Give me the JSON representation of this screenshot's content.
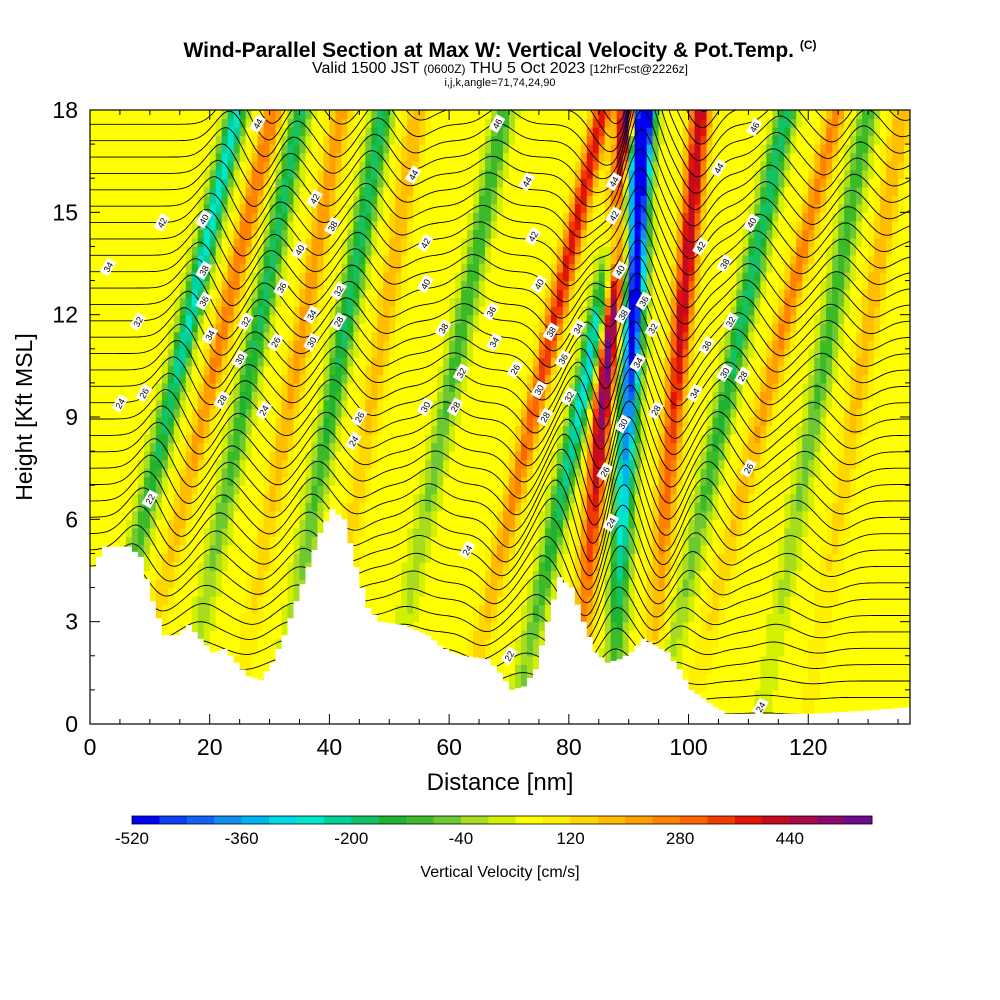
{
  "header": {
    "title": "Wind-Parallel Section at Max W: Vertical Velocity & Pot.Temp.",
    "title_mark": "(C)",
    "valid_prefix": "Valid 1500 JST",
    "valid_utc": "(0600Z)",
    "valid_date": "THU 5 Oct 2023",
    "forecast": "[12hrFcst@2226z]",
    "params": "i,j,k,angle=71,74,24,90"
  },
  "chart_data": {
    "type": "heatmap",
    "xlabel": "Distance [nm]",
    "ylabel": "Height [Kft MSL]",
    "xlim": [
      0,
      137
    ],
    "ylim": [
      0,
      18
    ],
    "x_ticks": [
      "0",
      "20",
      "40",
      "60",
      "80",
      "100",
      "120"
    ],
    "y_ticks": [
      "0",
      "3",
      "6",
      "9",
      "12",
      "15",
      "18"
    ],
    "fill_variable": "Vertical Velocity [cm/s]",
    "contour_variable": "Potential Temperature",
    "colorbar": {
      "label": "Vertical Velocity [cm/s]",
      "min": -520,
      "max": 520,
      "step": 40,
      "tick_labels": [
        "-520",
        "-360",
        "-200",
        "-40",
        "120",
        "280",
        "440"
      ],
      "colors": [
        "#0000f5",
        "#0c3ff5",
        "#1560f8",
        "#0f8ff0",
        "#00b4f0",
        "#00d8e6",
        "#00e6c8",
        "#00d29a",
        "#14c266",
        "#1eb432",
        "#3cba28",
        "#6ec832",
        "#a8dc1e",
        "#d2f000",
        "#ffff00",
        "#fff000",
        "#ffd700",
        "#ffbe00",
        "#ffa000",
        "#ff8200",
        "#ff6400",
        "#f03c00",
        "#e11405",
        "#c80a1e",
        "#aa0a46",
        "#8c0a6e",
        "#6e0a8c"
      ]
    },
    "terrain_kft": [
      [
        0,
        4.6
      ],
      [
        2,
        5.2
      ],
      [
        6,
        5.2
      ],
      [
        8,
        4.9
      ],
      [
        10,
        3.6
      ],
      [
        12,
        2.6
      ],
      [
        14,
        2.6
      ],
      [
        16,
        2.9
      ],
      [
        18,
        2.5
      ],
      [
        20,
        2.1
      ],
      [
        22,
        2.2
      ],
      [
        24,
        1.8
      ],
      [
        26,
        1.4
      ],
      [
        28,
        1.3
      ],
      [
        30,
        1.8
      ],
      [
        32,
        2.6
      ],
      [
        34,
        3.6
      ],
      [
        36,
        4.6
      ],
      [
        38,
        5.6
      ],
      [
        40,
        6.3
      ],
      [
        42,
        6.0
      ],
      [
        44,
        4.6
      ],
      [
        46,
        3.4
      ],
      [
        48,
        3.0
      ],
      [
        52,
        2.9
      ],
      [
        56,
        2.6
      ],
      [
        58,
        2.3
      ],
      [
        60,
        2.1
      ],
      [
        62,
        2.0
      ],
      [
        66,
        1.9
      ],
      [
        68,
        1.5
      ],
      [
        70,
        1.0
      ],
      [
        72,
        1.1
      ],
      [
        74,
        1.6
      ],
      [
        76,
        3.0
      ],
      [
        78,
        4.3
      ],
      [
        80,
        4.0
      ],
      [
        82,
        3.0
      ],
      [
        84,
        2.1
      ],
      [
        86,
        1.8
      ],
      [
        88,
        1.9
      ],
      [
        90,
        2.1
      ],
      [
        92,
        2.5
      ],
      [
        96,
        2.1
      ],
      [
        98,
        1.6
      ],
      [
        100,
        1.0
      ],
      [
        104,
        0.5
      ],
      [
        106,
        0.3
      ],
      [
        110,
        0.3
      ],
      [
        120,
        0.3
      ],
      [
        130,
        0.4
      ],
      [
        137,
        0.5
      ]
    ],
    "updrafts": [
      {
        "x": 15,
        "slope": 1.3,
        "amp": 220
      },
      {
        "x": 30,
        "slope": 1.0,
        "amp": 180
      },
      {
        "x": 44,
        "slope": 0.9,
        "amp": 140
      },
      {
        "x": 70,
        "slope": 1.3,
        "amp": 320
      },
      {
        "x": 84,
        "slope": 0.5,
        "amp": 560
      },
      {
        "x": 96,
        "slope": 0.5,
        "amp": 380
      },
      {
        "x": 108,
        "slope": 1.4,
        "amp": 200
      },
      {
        "x": 125,
        "slope": 0.9,
        "amp": 140
      }
    ],
    "downdrafts": [
      {
        "x": 9,
        "slope": 1.3,
        "amp": -320
      },
      {
        "x": 22,
        "slope": 1.1,
        "amp": -240
      },
      {
        "x": 37,
        "slope": 1.0,
        "amp": -250
      },
      {
        "x": 56,
        "slope": 1.1,
        "amp": -180
      },
      {
        "x": 78,
        "slope": 1.2,
        "amp": -420
      },
      {
        "x": 89,
        "slope": 0.3,
        "amp": -620
      },
      {
        "x": 102,
        "slope": 1.2,
        "amp": -260
      },
      {
        "x": 118,
        "slope": 1.0,
        "amp": -180
      }
    ],
    "contour_labels": [
      {
        "text": "44",
        "x": 28,
        "y": 17.6
      },
      {
        "text": "42",
        "x": 12,
        "y": 14.7
      },
      {
        "text": "40",
        "x": 19,
        "y": 14.8
      },
      {
        "text": "38",
        "x": 19,
        "y": 13.3
      },
      {
        "text": "36",
        "x": 19,
        "y": 12.4
      },
      {
        "text": "34",
        "x": 3,
        "y": 13.4
      },
      {
        "text": "32",
        "x": 8,
        "y": 11.8
      },
      {
        "text": "34",
        "x": 20,
        "y": 11.4
      },
      {
        "text": "32",
        "x": 26,
        "y": 11.8
      },
      {
        "text": "30",
        "x": 25,
        "y": 10.7
      },
      {
        "text": "26",
        "x": 9,
        "y": 9.7
      },
      {
        "text": "24",
        "x": 5,
        "y": 9.4
      },
      {
        "text": "28",
        "x": 22,
        "y": 9.5
      },
      {
        "text": "24",
        "x": 29,
        "y": 9.2
      },
      {
        "text": "22",
        "x": 10,
        "y": 6.6
      },
      {
        "text": "42",
        "x": 37.5,
        "y": 15.4
      },
      {
        "text": "40",
        "x": 35,
        "y": 13.9
      },
      {
        "text": "38",
        "x": 40.5,
        "y": 14.6
      },
      {
        "text": "36",
        "x": 32,
        "y": 12.8
      },
      {
        "text": "34",
        "x": 37,
        "y": 12.0
      },
      {
        "text": "32",
        "x": 41.5,
        "y": 12.7
      },
      {
        "text": "30",
        "x": 37,
        "y": 11.2
      },
      {
        "text": "28",
        "x": 41.5,
        "y": 11.8
      },
      {
        "text": "26",
        "x": 31,
        "y": 11.2
      },
      {
        "text": "26",
        "x": 45,
        "y": 9.0
      },
      {
        "text": "24",
        "x": 44,
        "y": 8.3
      },
      {
        "text": "44",
        "x": 54,
        "y": 16.1
      },
      {
        "text": "42",
        "x": 56,
        "y": 14.1
      },
      {
        "text": "40",
        "x": 56,
        "y": 12.9
      },
      {
        "text": "38",
        "x": 59,
        "y": 11.6
      },
      {
        "text": "32",
        "x": 62,
        "y": 10.3
      },
      {
        "text": "30",
        "x": 56,
        "y": 9.3
      },
      {
        "text": "28",
        "x": 61,
        "y": 9.3
      },
      {
        "text": "24",
        "x": 63,
        "y": 5.1
      },
      {
        "text": "46",
        "x": 68,
        "y": 17.6
      },
      {
        "text": "36",
        "x": 67,
        "y": 12.1
      },
      {
        "text": "34",
        "x": 67.5,
        "y": 11.2
      },
      {
        "text": "26",
        "x": 71,
        "y": 10.4
      },
      {
        "text": "44",
        "x": 73,
        "y": 15.9
      },
      {
        "text": "42",
        "x": 74,
        "y": 14.3
      },
      {
        "text": "40",
        "x": 75,
        "y": 12.9
      },
      {
        "text": "38",
        "x": 77,
        "y": 11.5
      },
      {
        "text": "36",
        "x": 79,
        "y": 10.7
      },
      {
        "text": "30",
        "x": 75,
        "y": 9.8
      },
      {
        "text": "28",
        "x": 76,
        "y": 9.0
      },
      {
        "text": "22",
        "x": 70,
        "y": 2.0
      },
      {
        "text": "34",
        "x": 81.5,
        "y": 11.6
      },
      {
        "text": "32",
        "x": 80,
        "y": 9.6
      },
      {
        "text": "44",
        "x": 87.5,
        "y": 15.9
      },
      {
        "text": "42",
        "x": 87.5,
        "y": 14.9
      },
      {
        "text": "40",
        "x": 88.5,
        "y": 13.3
      },
      {
        "text": "38",
        "x": 89,
        "y": 12.0
      },
      {
        "text": "34",
        "x": 91.5,
        "y": 10.6
      },
      {
        "text": "30",
        "x": 89,
        "y": 8.8
      },
      {
        "text": "26",
        "x": 86,
        "y": 7.4
      },
      {
        "text": "24",
        "x": 87,
        "y": 5.9
      },
      {
        "text": "36",
        "x": 92.5,
        "y": 12.4
      },
      {
        "text": "32",
        "x": 94,
        "y": 11.6
      },
      {
        "text": "28",
        "x": 94.5,
        "y": 9.2
      },
      {
        "text": "44",
        "x": 105,
        "y": 16.3
      },
      {
        "text": "42",
        "x": 102,
        "y": 14.0
      },
      {
        "text": "38",
        "x": 106,
        "y": 13.5
      },
      {
        "text": "36",
        "x": 103,
        "y": 11.1
      },
      {
        "text": "34",
        "x": 101,
        "y": 9.7
      },
      {
        "text": "32",
        "x": 107,
        "y": 11.8
      },
      {
        "text": "30",
        "x": 106,
        "y": 10.3
      },
      {
        "text": "28",
        "x": 109,
        "y": 10.2
      },
      {
        "text": "46",
        "x": 111,
        "y": 17.5
      },
      {
        "text": "40",
        "x": 110.5,
        "y": 14.7
      },
      {
        "text": "26",
        "x": 110,
        "y": 7.5
      },
      {
        "text": "24",
        "x": 112,
        "y": 0.5
      }
    ]
  }
}
